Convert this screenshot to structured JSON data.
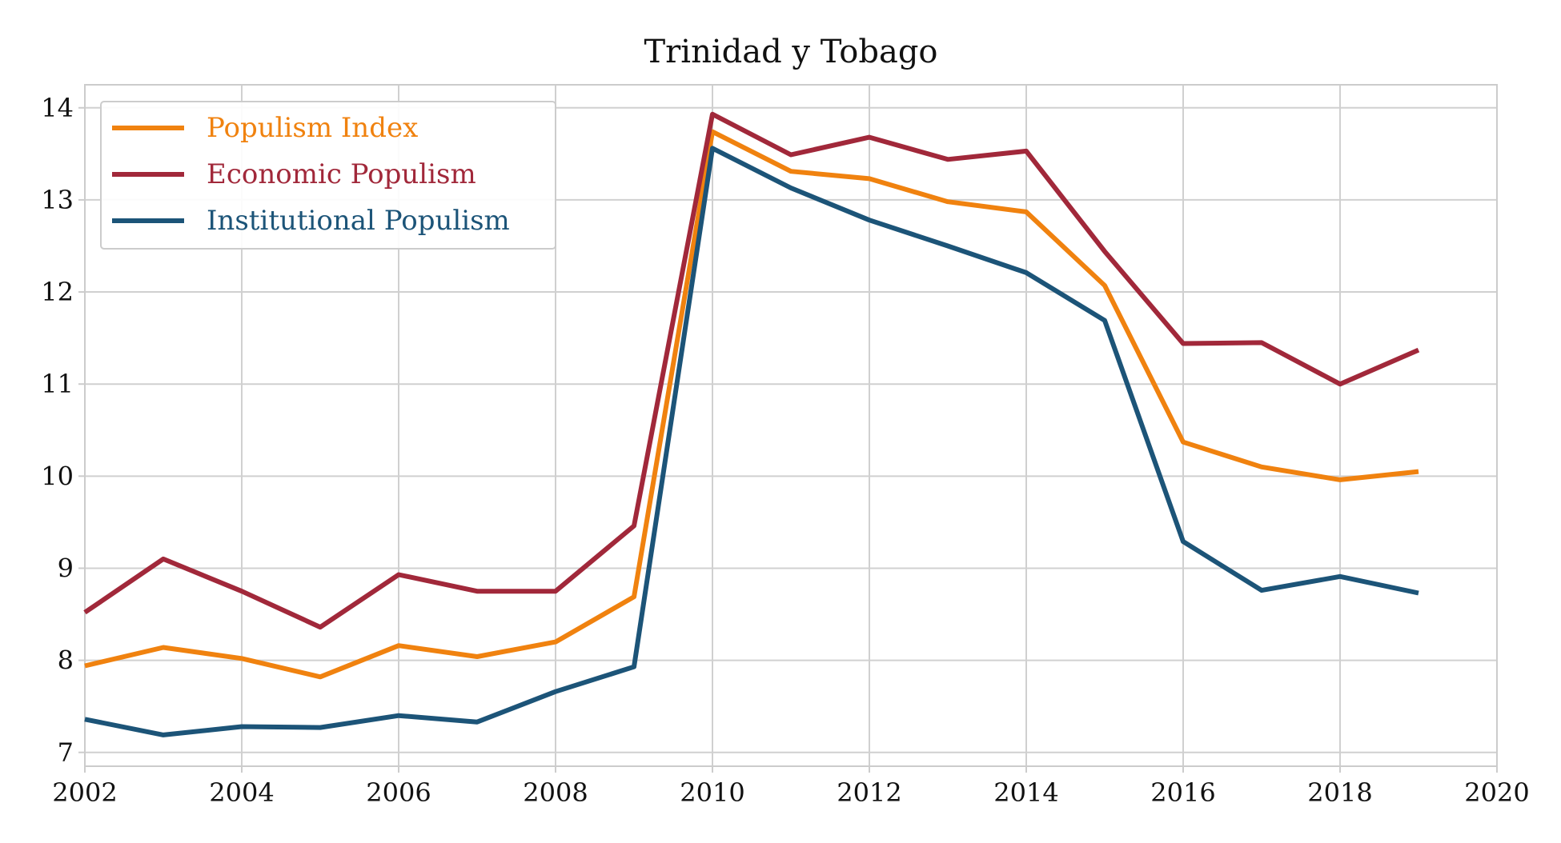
{
  "chart_data": {
    "type": "line",
    "title": "Trinidad y Tobago",
    "xlabel": "",
    "ylabel": "",
    "xlim": [
      2002,
      2020
    ],
    "ylim": [
      6.85,
      14.25
    ],
    "xticks": [
      2002,
      2004,
      2006,
      2008,
      2010,
      2012,
      2014,
      2016,
      2018,
      2020
    ],
    "yticks": [
      7,
      8,
      9,
      10,
      11,
      12,
      13,
      14
    ],
    "grid": true,
    "legend_position": "top-left",
    "x": [
      2002,
      2003,
      2004,
      2005,
      2006,
      2007,
      2008,
      2009,
      2010,
      2011,
      2012,
      2013,
      2014,
      2015,
      2016,
      2017,
      2018,
      2019
    ],
    "series": [
      {
        "name": "Populism Index",
        "color": "#f0820f",
        "values": [
          7.94,
          8.14,
          8.02,
          7.82,
          8.16,
          8.04,
          8.2,
          8.69,
          13.74,
          13.31,
          13.23,
          12.98,
          12.87,
          12.07,
          10.37,
          10.1,
          9.96,
          10.05
        ]
      },
      {
        "name": "Economic Populism",
        "color": "#a1283a",
        "values": [
          8.52,
          9.1,
          8.75,
          8.36,
          8.93,
          8.75,
          8.75,
          9.46,
          13.93,
          13.49,
          13.68,
          13.44,
          13.53,
          12.44,
          11.44,
          11.45,
          11.0,
          11.37
        ]
      },
      {
        "name": "Institutional Populism",
        "color": "#1c5478",
        "values": [
          7.36,
          7.19,
          7.28,
          7.27,
          7.4,
          7.33,
          7.66,
          7.93,
          13.56,
          13.13,
          12.78,
          12.5,
          12.21,
          11.69,
          9.29,
          8.76,
          8.91,
          8.73
        ]
      }
    ]
  }
}
